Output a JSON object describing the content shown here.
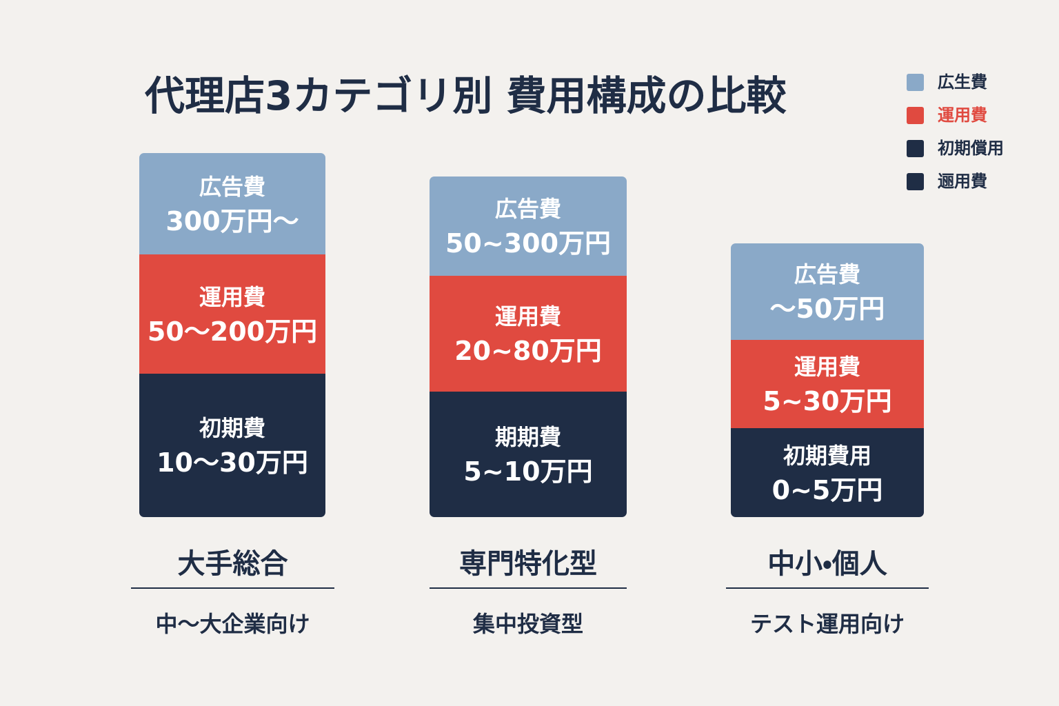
{
  "title": "代理店3カテゴリ別 費用構成の比較",
  "legend": [
    {
      "label": "広生費",
      "color": "#8aa9c8"
    },
    {
      "label": "運用費",
      "color": "#e04a40"
    },
    {
      "label": "初期償用",
      "color": "#1f2d45"
    },
    {
      "label": "逦用費",
      "color": "#1f2d45"
    }
  ],
  "columns": [
    {
      "segments": [
        {
          "label": "広告費",
          "amount": "300万円〜"
        },
        {
          "label": "運用費",
          "amount": "50〜200万円"
        },
        {
          "label": "初期費",
          "amount": "10〜30万円"
        }
      ],
      "name": "大手総合",
      "subtitle": "中〜大企業向け"
    },
    {
      "segments": [
        {
          "label": "広告費",
          "amount": "50~300万円"
        },
        {
          "label": "運用費",
          "amount": "20~80万円"
        },
        {
          "label": "期期費",
          "amount": "5~10万円"
        }
      ],
      "name": "専門特化型",
      "subtitle": "集中投資型"
    },
    {
      "segments": [
        {
          "label": "広告費",
          "amount": "〜50万円"
        },
        {
          "label": "運用費",
          "amount": "5~30万円"
        },
        {
          "label": "初期費用",
          "amount": "0~5万円"
        }
      ],
      "name": "中小・個人",
      "subtitle": "テスト運用向け"
    }
  ]
}
